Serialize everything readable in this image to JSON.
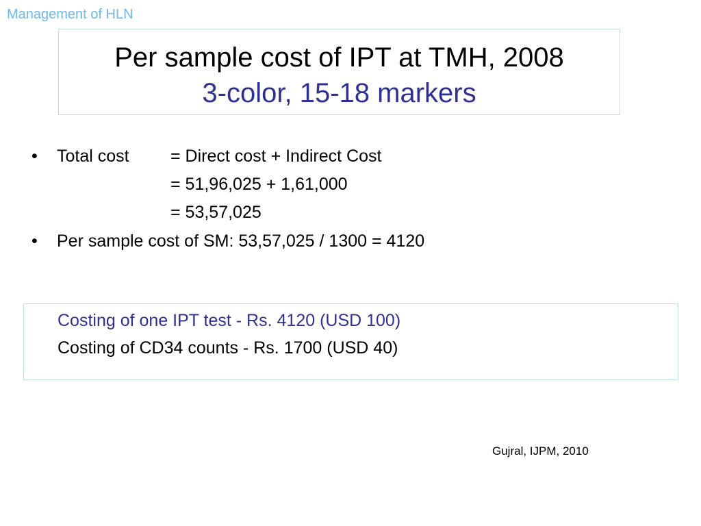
{
  "header_tag": "Management of HLN",
  "title": {
    "line1": "Per sample cost of IPT at TMH, 2008",
    "line2": "3-color, 15-18 markers"
  },
  "bullets": {
    "marker": "•",
    "total_cost_label": "Total cost",
    "total_cost_eq1": "= Direct cost + Indirect Cost",
    "total_cost_eq2": "= 51,96,025 + 1,61,000",
    "total_cost_eq3": "= 53,57,025",
    "per_sample": "Per sample cost of SM: 53,57,025 / 1300 = 4120"
  },
  "costing": {
    "ipt_test": "Costing of one IPT test - Rs. 4120 (USD 100)",
    "cd34": "Costing of CD34 counts - Rs. 1700 (USD 40)"
  },
  "citation": "Gujral, IJPM, 2010",
  "colors": {
    "header_tag": "#6fb8e8",
    "accent_blue": "#2e3192",
    "box_border": "#bfe0e6"
  }
}
